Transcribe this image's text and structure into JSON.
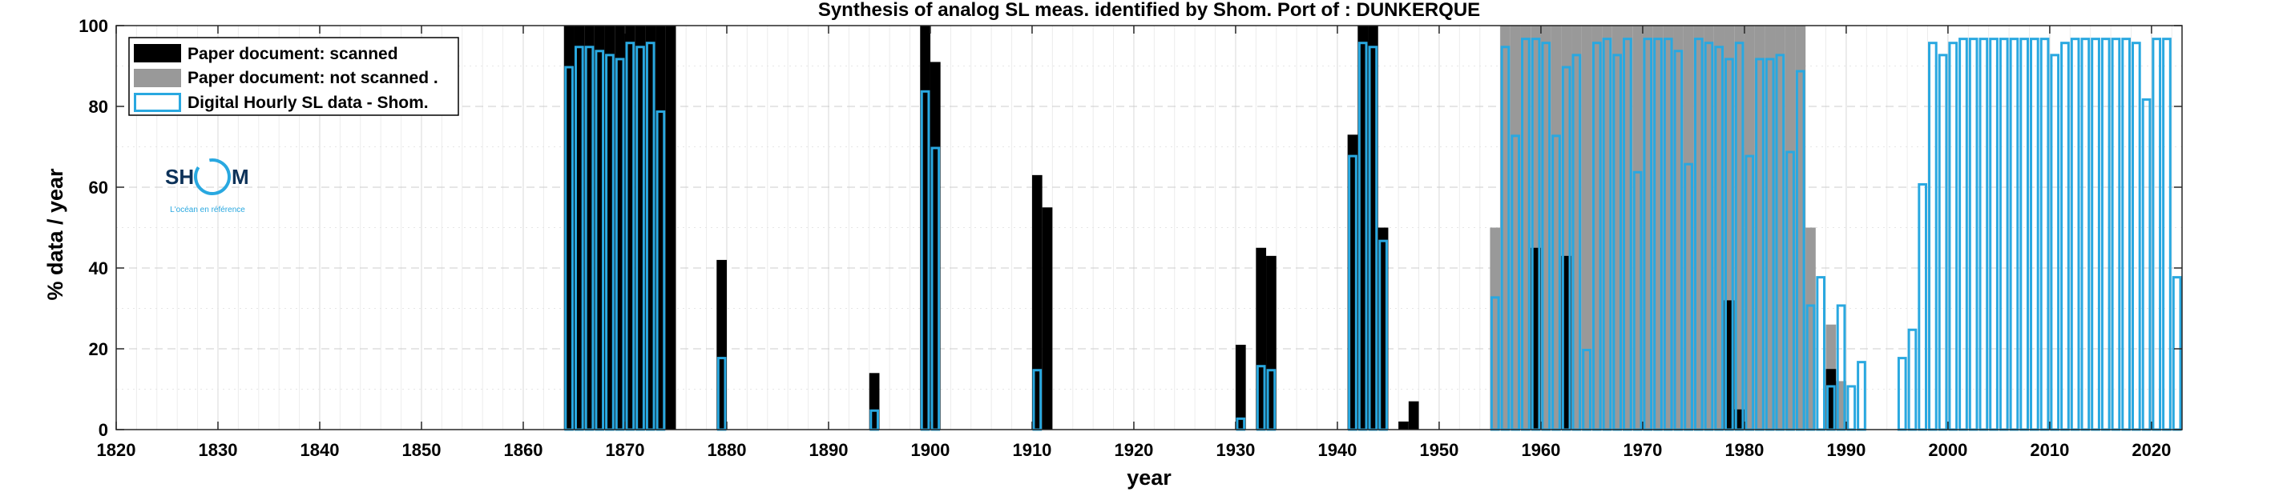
{
  "chart_data": {
    "type": "bar",
    "title": "Synthesis of analog SL meas. identified by Shom. Port of : DUNKERQUE",
    "xlabel": "year",
    "ylabel": "% data / year",
    "xlim": [
      1820,
      2023
    ],
    "ylim": [
      0,
      100
    ],
    "x_ticks": [
      1820,
      1830,
      1840,
      1850,
      1860,
      1870,
      1880,
      1890,
      1900,
      1910,
      1920,
      1930,
      1940,
      1950,
      1960,
      1970,
      1980,
      1990,
      2000,
      2010,
      2020
    ],
    "y_ticks": [
      0,
      20,
      40,
      60,
      80,
      100
    ],
    "grid": true,
    "legend_position": "top-left",
    "series": [
      {
        "name": "Paper document: scanned",
        "legend_label": "Paper document: scanned",
        "color": "#000000",
        "style": "filled",
        "points": [
          [
            1864,
            100
          ],
          [
            1865,
            100
          ],
          [
            1866,
            100
          ],
          [
            1867,
            100
          ],
          [
            1868,
            100
          ],
          [
            1869,
            100
          ],
          [
            1870,
            100
          ],
          [
            1871,
            100
          ],
          [
            1872,
            100
          ],
          [
            1873,
            100
          ],
          [
            1874,
            100
          ],
          [
            1879,
            42
          ],
          [
            1894,
            14
          ],
          [
            1899,
            100
          ],
          [
            1900,
            91
          ],
          [
            1910,
            63
          ],
          [
            1911,
            55
          ],
          [
            1930,
            21
          ],
          [
            1932,
            45
          ],
          [
            1933,
            43
          ],
          [
            1941,
            73
          ],
          [
            1942,
            100
          ],
          [
            1943,
            100
          ],
          [
            1944,
            50
          ],
          [
            1946,
            2
          ],
          [
            1947,
            7
          ],
          [
            1959,
            45
          ],
          [
            1962,
            43
          ],
          [
            1978,
            32
          ],
          [
            1979,
            5
          ],
          [
            1988,
            15
          ]
        ]
      },
      {
        "name": "Paper document: not scanned",
        "legend_label": "Paper document: not scanned   .",
        "color": "#999999",
        "style": "filled",
        "points": [
          [
            1873,
            100
          ],
          [
            1955,
            50
          ],
          [
            1956,
            100
          ],
          [
            1957,
            100
          ],
          [
            1958,
            100
          ],
          [
            1959,
            100
          ],
          [
            1960,
            100
          ],
          [
            1961,
            100
          ],
          [
            1962,
            100
          ],
          [
            1963,
            100
          ],
          [
            1964,
            100
          ],
          [
            1965,
            100
          ],
          [
            1966,
            100
          ],
          [
            1967,
            100
          ],
          [
            1968,
            100
          ],
          [
            1969,
            100
          ],
          [
            1970,
            100
          ],
          [
            1971,
            100
          ],
          [
            1972,
            100
          ],
          [
            1973,
            100
          ],
          [
            1974,
            100
          ],
          [
            1975,
            100
          ],
          [
            1976,
            100
          ],
          [
            1977,
            100
          ],
          [
            1978,
            100
          ],
          [
            1979,
            100
          ],
          [
            1980,
            100
          ],
          [
            1981,
            100
          ],
          [
            1982,
            100
          ],
          [
            1983,
            100
          ],
          [
            1984,
            100
          ],
          [
            1985,
            100
          ],
          [
            1986,
            50
          ],
          [
            1988,
            26
          ],
          [
            1989,
            12
          ]
        ]
      },
      {
        "name": "Digital Hourly SL data - Shom.",
        "legend_label": "Digital Hourly SL data - Shom.",
        "color": "#29a8e0",
        "style": "outline",
        "points": [
          [
            1864,
            90
          ],
          [
            1865,
            95
          ],
          [
            1866,
            95
          ],
          [
            1867,
            94
          ],
          [
            1868,
            93
          ],
          [
            1869,
            92
          ],
          [
            1870,
            96
          ],
          [
            1871,
            95
          ],
          [
            1872,
            96
          ],
          [
            1873,
            79
          ],
          [
            1879,
            18
          ],
          [
            1894,
            5
          ],
          [
            1899,
            84
          ],
          [
            1900,
            70
          ],
          [
            1910,
            15
          ],
          [
            1930,
            3
          ],
          [
            1932,
            16
          ],
          [
            1933,
            15
          ],
          [
            1941,
            68
          ],
          [
            1942,
            96
          ],
          [
            1943,
            95
          ],
          [
            1944,
            47
          ],
          [
            1955,
            33
          ],
          [
            1956,
            95
          ],
          [
            1957,
            73
          ],
          [
            1958,
            97
          ],
          [
            1959,
            97
          ],
          [
            1960,
            96
          ],
          [
            1961,
            73
          ],
          [
            1962,
            90
          ],
          [
            1963,
            93
          ],
          [
            1964,
            20
          ],
          [
            1965,
            96
          ],
          [
            1966,
            97
          ],
          [
            1967,
            93
          ],
          [
            1968,
            97
          ],
          [
            1969,
            64
          ],
          [
            1970,
            97
          ],
          [
            1971,
            97
          ],
          [
            1972,
            97
          ],
          [
            1973,
            94
          ],
          [
            1974,
            66
          ],
          [
            1975,
            97
          ],
          [
            1976,
            96
          ],
          [
            1977,
            95
          ],
          [
            1978,
            92
          ],
          [
            1979,
            96
          ],
          [
            1980,
            68
          ],
          [
            1981,
            92
          ],
          [
            1982,
            92
          ],
          [
            1983,
            93
          ],
          [
            1984,
            69
          ],
          [
            1985,
            89
          ],
          [
            1986,
            31
          ],
          [
            1987,
            38
          ],
          [
            1988,
            11
          ],
          [
            1989,
            31
          ],
          [
            1990,
            11
          ],
          [
            1991,
            17
          ],
          [
            1995,
            18
          ],
          [
            1996,
            25
          ],
          [
            1997,
            61
          ],
          [
            1998,
            96
          ],
          [
            1999,
            93
          ],
          [
            2000,
            96
          ],
          [
            2001,
            97
          ],
          [
            2002,
            97
          ],
          [
            2003,
            97
          ],
          [
            2004,
            97
          ],
          [
            2005,
            97
          ],
          [
            2006,
            97
          ],
          [
            2007,
            97
          ],
          [
            2008,
            97
          ],
          [
            2009,
            97
          ],
          [
            2010,
            93
          ],
          [
            2011,
            96
          ],
          [
            2012,
            97
          ],
          [
            2013,
            97
          ],
          [
            2014,
            97
          ],
          [
            2015,
            97
          ],
          [
            2016,
            97
          ],
          [
            2017,
            97
          ],
          [
            2018,
            96
          ],
          [
            2019,
            82
          ],
          [
            2020,
            97
          ],
          [
            2021,
            97
          ],
          [
            2022,
            38
          ]
        ]
      }
    ]
  },
  "logo": {
    "text_left": "SH",
    "text_right": "M",
    "tagline": "L'océan en référence"
  }
}
